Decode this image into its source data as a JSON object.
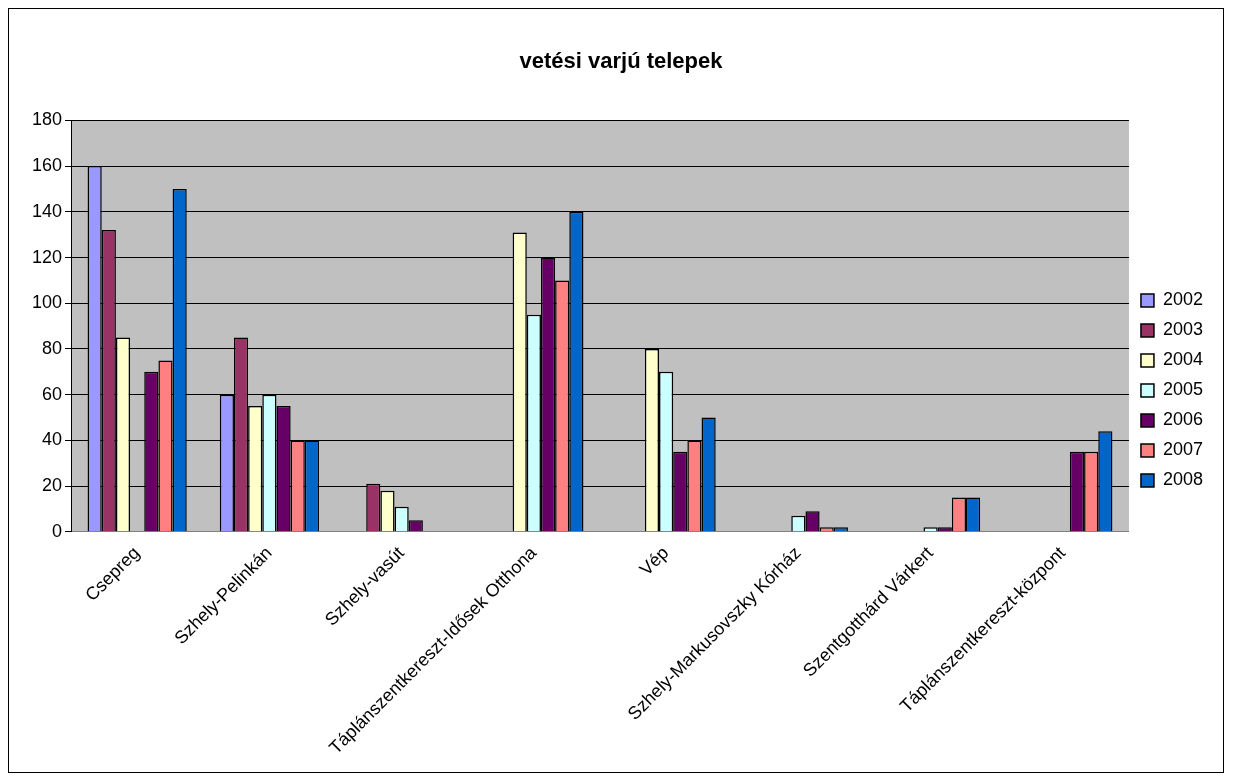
{
  "chart_data": {
    "type": "bar",
    "title": "vetési varjú telepek",
    "categories": [
      "Csepreg",
      "Szhely-Pelinkán",
      "Szhely-vasút",
      "Táplánszentkereszt-Idősek Otthona",
      "Vép",
      "Szhely-Markusovszky Kórház",
      "Szentgotthárd Várkert",
      "Táplánszentkereszt-központ"
    ],
    "series": [
      {
        "name": "2002",
        "color": "#9999ff",
        "values": [
          160,
          60,
          null,
          null,
          null,
          null,
          null,
          null
        ]
      },
      {
        "name": "2003",
        "color": "#993366",
        "values": [
          132,
          85,
          21,
          null,
          null,
          null,
          null,
          null
        ]
      },
      {
        "name": "2004",
        "color": "#ffffcc",
        "values": [
          85,
          55,
          18,
          131,
          80,
          null,
          null,
          null
        ]
      },
      {
        "name": "2005",
        "color": "#ccffff",
        "values": [
          null,
          60,
          11,
          95,
          70,
          7,
          2,
          null
        ]
      },
      {
        "name": "2006",
        "color": "#660066",
        "values": [
          70,
          55,
          5,
          120,
          35,
          9,
          2,
          35
        ]
      },
      {
        "name": "2007",
        "color": "#ff8080",
        "values": [
          75,
          40,
          null,
          110,
          40,
          2,
          15,
          35
        ]
      },
      {
        "name": "2008",
        "color": "#0066cc",
        "values": [
          150,
          40,
          null,
          140,
          50,
          2,
          15,
          44
        ]
      }
    ],
    "ylim": [
      0,
      180
    ],
    "yticks": [
      0,
      20,
      40,
      60,
      80,
      100,
      120,
      140,
      160,
      180
    ],
    "grid": "y",
    "legend": "right"
  }
}
